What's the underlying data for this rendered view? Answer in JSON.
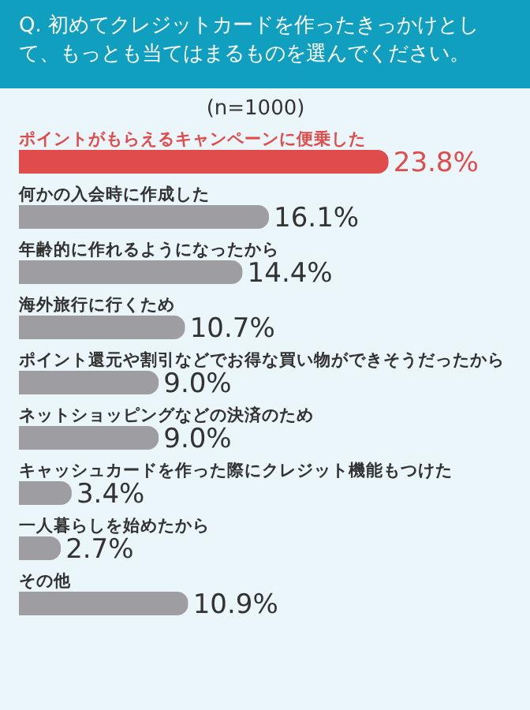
{
  "chart_data": {
    "type": "bar",
    "orientation": "horizontal",
    "title": "Q. 初めてクレジットカードを作ったきっかけとして、もっとも当てはまるものを選んでください。",
    "subtitle": "(n=1000)",
    "categories": [
      "ポイントがもらえるキャンペーンに便乗した",
      "何かの入会時に作成した",
      "年齢的に作れるようになったから",
      "海外旅行に行くため",
      "ポイント還元や割引などでお得な買い物ができそうだったから",
      "ネットショッピングなどの決済のため",
      "キャッシュカードを作った際にクレジット機能もつけた",
      "一人暮らしを始めたから",
      "その他"
    ],
    "values": [
      23.8,
      16.1,
      14.4,
      10.7,
      9.0,
      9.0,
      3.4,
      2.7,
      10.9
    ],
    "value_labels": [
      "23.8%",
      "16.1%",
      "14.4%",
      "10.7%",
      "9.0%",
      "9.0%",
      "3.4%",
      "2.7%",
      "10.9%"
    ],
    "colors": [
      "#e04b4b",
      "#9e9ea2",
      "#9e9ea2",
      "#9e9ea2",
      "#9e9ea2",
      "#9e9ea2",
      "#9e9ea2",
      "#9e9ea2",
      "#9e9ea2"
    ]
  }
}
